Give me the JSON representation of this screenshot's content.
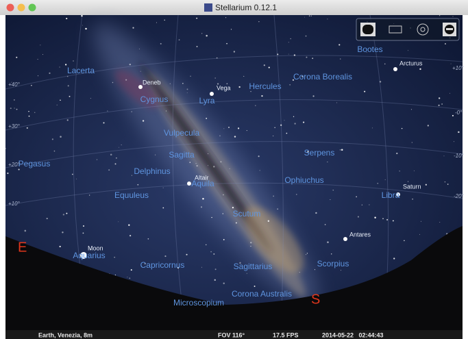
{
  "window": {
    "title": "Stellarium 0.12.1"
  },
  "constellations": [
    "Bootes",
    "Lacerta",
    "Cygnus",
    "Lyra",
    "Hercules",
    "Corona Borealis",
    "Vulpecula",
    "Sagitta",
    "Serpens",
    "Pegasus",
    "Delphinus",
    "Aquila",
    "Ophiuchus",
    "Libra",
    "Equuleus",
    "Scutum",
    "Aquarius",
    "Capricornus",
    "Sagittarius",
    "Scorpius",
    "Corona Australis",
    "Microscopium"
  ],
  "stars": [
    "Deneb",
    "Vega",
    "Arcturus",
    "Altair",
    "Saturn",
    "Antares",
    "Moon"
  ],
  "grid_labels": [
    "+40°",
    "+30°",
    "+20°",
    "+10°",
    "+10°",
    "-0°",
    "-10°",
    "-20°"
  ],
  "cardinal": [
    "E",
    "S"
  ],
  "status_bar": {
    "location": "Earth, Venezia, 8m",
    "fov": "FOV 116°",
    "fps": "17.5 FPS",
    "datetime": "2014-05-22   02:44:43"
  }
}
